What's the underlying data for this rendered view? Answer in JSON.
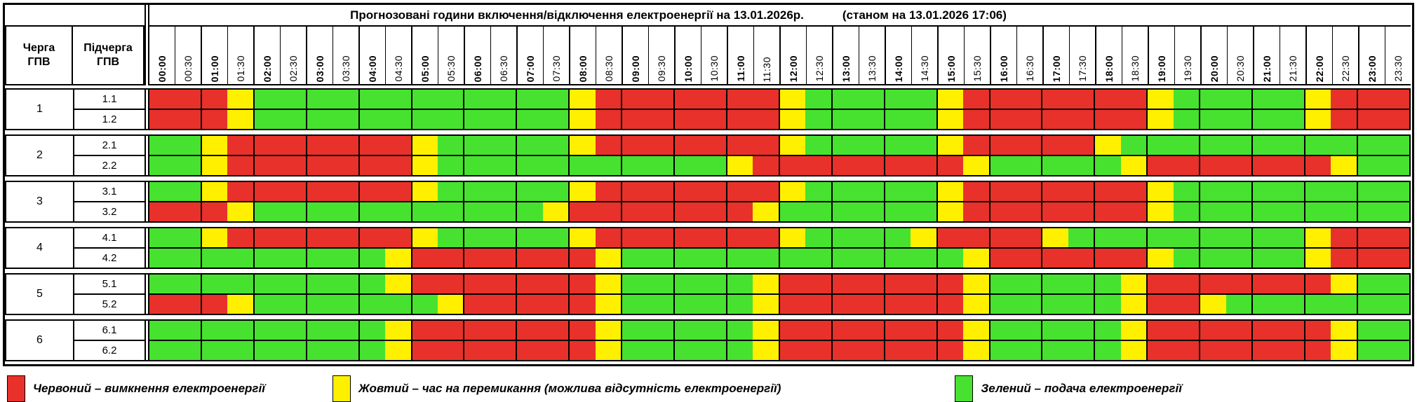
{
  "title": {
    "main": "Прогнозовані години включення/відключення електроенергії на 13.01.2026р.",
    "status": "(станом на 13.01.2026 17:06)"
  },
  "columns": {
    "queue_header": "Черга\nГПВ",
    "subqueue_header": "Підчерга\nГПВ"
  },
  "times": [
    "00:00",
    "00:30",
    "01:00",
    "01:30",
    "02:00",
    "02:30",
    "03:00",
    "03:30",
    "04:00",
    "04:30",
    "05:00",
    "05:30",
    "06:00",
    "06:30",
    "07:00",
    "07:30",
    "08:00",
    "08:30",
    "09:00",
    "09:30",
    "10:00",
    "10:30",
    "11:00",
    "11:30",
    "12:00",
    "12:30",
    "13:00",
    "13:30",
    "14:00",
    "14:30",
    "15:00",
    "15:30",
    "16:00",
    "16:30",
    "17:00",
    "17:30",
    "18:00",
    "18:30",
    "19:00",
    "19:30",
    "20:00",
    "20:30",
    "21:00",
    "21:30",
    "22:00",
    "22:30",
    "23:00",
    "23:30"
  ],
  "colors": {
    "R": "#e8312a",
    "Y": "#fff000",
    "G": "#46e22f"
  },
  "legend": [
    {
      "key": "R",
      "label": "Червоний – вимкнення електроенергії"
    },
    {
      "key": "Y",
      "label": "Жовтий – час на перемикання (можлива відсутність електроенергії)"
    },
    {
      "key": "G",
      "label": "Зелений – подача електроенергії"
    }
  ],
  "groups": [
    {
      "queue": "1",
      "rows": [
        {
          "label": "1.1",
          "pattern": "RRRYGGGGGGGGGGGGYRRRRRRRYGGGGGYRRRRRRRYGGGGGYRRR"
        },
        {
          "label": "1.2",
          "pattern": "RRRYGGGGGGGGGGGGYRRRRRRRYGGGGGYRRRRRRRYGGGGGYRRR"
        }
      ]
    },
    {
      "queue": "2",
      "rows": [
        {
          "label": "2.1",
          "pattern": "GGYRRRRRRRYGGGGGYRRRRRRRYGGGGGYRRRRRYGGGGGGGGGGG"
        },
        {
          "label": "2.2",
          "pattern": "GGYRRRRRRRYGGGGGGGGGGGYRRRRRRRRYGGGGGYRRRRRRRYGG"
        }
      ]
    },
    {
      "queue": "3",
      "rows": [
        {
          "label": "3.1",
          "pattern": "GGYRRRRRRRYGGGGGYRRRRRRRYGGGGGYRRRRRRRYGGGGGGGGG"
        },
        {
          "label": "3.2",
          "pattern": "RRRYGGGGGGGGGGGYRRRRRRRYGGGGGGYRRRRRRRYGGGGGGGGG"
        }
      ]
    },
    {
      "queue": "4",
      "rows": [
        {
          "label": "4.1",
          "pattern": "GGYRRRRRRRYGGGGGYRRRRRRRYGGGGYRRRRYGGGGGGGGGYRRR"
        },
        {
          "label": "4.2",
          "pattern": "GGGGGGGGGYRRRRRRRYGGGGGGGGGGGGGYRRRRRRYGGGGGYRRR"
        }
      ]
    },
    {
      "queue": "5",
      "rows": [
        {
          "label": "5.1",
          "pattern": "GGGGGGGGGYRRRRRRRYGGGGGYRRRRRRRYGGGGGYRRRRRRRYGG"
        },
        {
          "label": "5.2",
          "pattern": "RRRYGGGGGGGYRRRRRYGGGGGYRRRRRRRYGGGGGYRRYGGGGGGG"
        }
      ]
    },
    {
      "queue": "6",
      "rows": [
        {
          "label": "6.1",
          "pattern": "GGGGGGGGGYRRRRRRRYGGGGGYRRRRRRRYGGGGGYRRRRRRRYGG"
        },
        {
          "label": "6.2",
          "pattern": "GGGGGGGGGYRRRRRRRYGGGGGYRRRRRRRYGGGGGYRRRRRRRYGG"
        }
      ]
    }
  ]
}
